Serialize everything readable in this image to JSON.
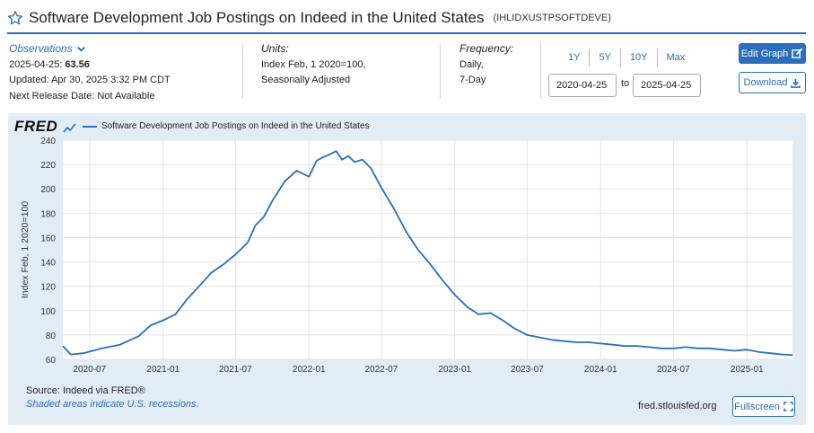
{
  "header": {
    "title": "Software Development Job Postings on Indeed in the United States",
    "series_id": "(IHLIDXUSTPSOFTDEVE)"
  },
  "observations": {
    "label": "Observations",
    "date_label": "2025-04-25:",
    "value": "63.56",
    "updated": "Updated: Apr 30, 2025 3:32 PM CDT",
    "next_release": "Next Release Date: Not Available"
  },
  "units": {
    "label": "Units:",
    "line1": "Index Feb, 1 2020=100,",
    "line2": "Seasonally Adjusted"
  },
  "frequency": {
    "label": "Frequency:",
    "line1": "Daily,",
    "line2": "7-Day"
  },
  "ranges": [
    "1Y",
    "5Y",
    "10Y",
    "Max"
  ],
  "date_range": {
    "start": "2020-04-25",
    "to": "to",
    "end": "2025-04-25"
  },
  "buttons": {
    "edit": "Edit Graph",
    "download": "Download",
    "fullscreen": "Fullscreen"
  },
  "chart_header": {
    "logo": "FRED"
  },
  "footer": {
    "source": "Source: Indeed via FRED®",
    "recession_note": "Shaded areas indicate U.S. recessions.",
    "site": "fred.stlouisfed.org"
  },
  "colors": {
    "accent": "#2a6ebb",
    "panel": "#e2ecf5"
  },
  "chart_data": {
    "type": "line",
    "title": "Software Development Job Postings on Indeed in the United States",
    "legend": [
      "Software Development Job Postings on Indeed in the United States"
    ],
    "xlabel": "",
    "ylabel": "Index Feb, 1 2020=100",
    "ylim": [
      60,
      240
    ],
    "yticks": [
      60,
      80,
      100,
      120,
      140,
      160,
      180,
      200,
      220,
      240
    ],
    "xlim": [
      "2020-04-25",
      "2025-04-25"
    ],
    "xticks": [
      "2020-07",
      "2021-01",
      "2021-07",
      "2022-01",
      "2022-07",
      "2023-01",
      "2023-07",
      "2024-01",
      "2024-07",
      "2025-01"
    ],
    "grid": true,
    "series": [
      {
        "name": "Software Development Job Postings on Indeed in the United States",
        "x": [
          "2020-04-25",
          "2020-05-15",
          "2020-06-15",
          "2020-08-01",
          "2020-09-15",
          "2020-11-01",
          "2020-12-01",
          "2021-01-01",
          "2021-02-01",
          "2021-03-01",
          "2021-04-01",
          "2021-05-01",
          "2021-06-01",
          "2021-07-01",
          "2021-08-01",
          "2021-08-20",
          "2021-09-10",
          "2021-10-01",
          "2021-11-01",
          "2021-12-01",
          "2022-01-01",
          "2022-01-20",
          "2022-02-05",
          "2022-02-20",
          "2022-03-10",
          "2022-03-25",
          "2022-04-10",
          "2022-04-25",
          "2022-05-15",
          "2022-06-05",
          "2022-07-01",
          "2022-08-01",
          "2022-09-01",
          "2022-10-01",
          "2022-11-01",
          "2022-12-01",
          "2023-01-01",
          "2023-02-01",
          "2023-03-01",
          "2023-04-01",
          "2023-05-01",
          "2023-06-01",
          "2023-07-01",
          "2023-08-01",
          "2023-09-01",
          "2023-10-01",
          "2023-11-01",
          "2023-12-01",
          "2024-01-01",
          "2024-02-01",
          "2024-03-01",
          "2024-04-01",
          "2024-05-01",
          "2024-06-01",
          "2024-07-01",
          "2024-08-01",
          "2024-09-01",
          "2024-10-01",
          "2024-11-01",
          "2024-12-01",
          "2025-01-01",
          "2025-02-01",
          "2025-03-01",
          "2025-04-01",
          "2025-04-25"
        ],
        "values": [
          71,
          64,
          65,
          69,
          72,
          79,
          88,
          92,
          97,
          109,
          120,
          131,
          138,
          146,
          156,
          170,
          177,
          190,
          206,
          215,
          210,
          223,
          226,
          228,
          231,
          224,
          227,
          222,
          224,
          217,
          201,
          184,
          165,
          150,
          138,
          125,
          113,
          103,
          97,
          98,
          92,
          85,
          80,
          78,
          76,
          75,
          74,
          74,
          73,
          72,
          71,
          71,
          70,
          69,
          69,
          70,
          69,
          69,
          68,
          67,
          68,
          66,
          65,
          64,
          63.56
        ]
      }
    ]
  }
}
